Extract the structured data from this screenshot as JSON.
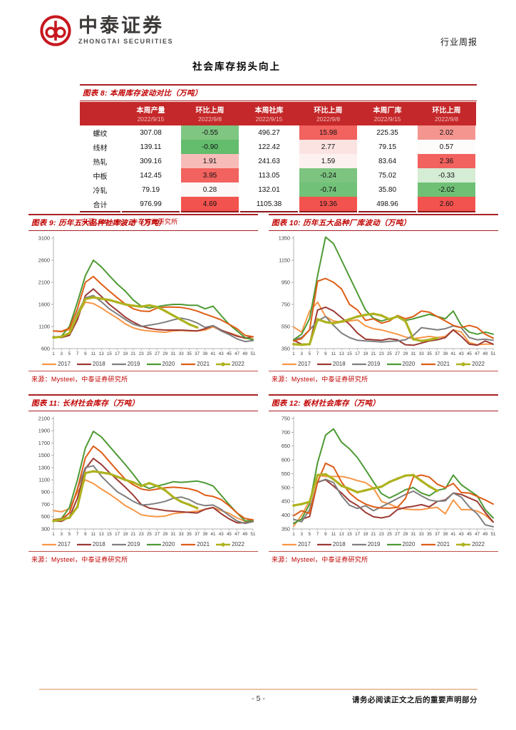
{
  "header": {
    "brand_cn": "中泰证券",
    "brand_en": "ZHONGTAI SECURITIES",
    "doc_type": "行业周报"
  },
  "page_title": "社会库存拐头向上",
  "colors": {
    "brand_red": "#c7171e",
    "accent_red": "#c00000",
    "table_header_bg": "#c5282a",
    "footer_rule": "#e8c4a4"
  },
  "table": {
    "title": "图表 8: 本周库存波动对比（万吨）",
    "columns": [
      {
        "label": "本周产量",
        "date": "2022/9/15"
      },
      {
        "label": "环比上周",
        "date": "2022/9/8"
      },
      {
        "label": "本周社库",
        "date": "2022/9/15"
      },
      {
        "label": "环比上周",
        "date": "2022/9/8"
      },
      {
        "label": "本周厂库",
        "date": "2022/9/15"
      },
      {
        "label": "环比上周",
        "date": "2022/9/8"
      }
    ],
    "rows": [
      {
        "name": "螺纹",
        "cells": [
          {
            "v": "307.08",
            "bg": ""
          },
          {
            "v": "-0.55",
            "bg": "#7fc682"
          },
          {
            "v": "496.27",
            "bg": ""
          },
          {
            "v": "15.98",
            "bg": "#f2625e"
          },
          {
            "v": "225.35",
            "bg": ""
          },
          {
            "v": "2.02",
            "bg": "#f4958f"
          }
        ]
      },
      {
        "name": "线材",
        "cells": [
          {
            "v": "139.11",
            "bg": ""
          },
          {
            "v": "-0.90",
            "bg": "#63bd6c"
          },
          {
            "v": "122.42",
            "bg": ""
          },
          {
            "v": "2.77",
            "bg": "#fbe3e2"
          },
          {
            "v": "79.15",
            "bg": ""
          },
          {
            "v": "0.57",
            "bg": "#fefbfb"
          }
        ]
      },
      {
        "name": "热轧",
        "cells": [
          {
            "v": "309.16",
            "bg": ""
          },
          {
            "v": "1.91",
            "bg": "#f8bcb8"
          },
          {
            "v": "241.63",
            "bg": ""
          },
          {
            "v": "1.59",
            "bg": "#fdf1f0"
          },
          {
            "v": "83.64",
            "bg": ""
          },
          {
            "v": "2.36",
            "bg": "#f2625e"
          }
        ]
      },
      {
        "name": "中板",
        "cells": [
          {
            "v": "142.45",
            "bg": ""
          },
          {
            "v": "3.95",
            "bg": "#f2625e"
          },
          {
            "v": "113.05",
            "bg": ""
          },
          {
            "v": "-0.24",
            "bg": "#7cc480"
          },
          {
            "v": "75.02",
            "bg": ""
          },
          {
            "v": "-0.33",
            "bg": "#d5ecd5"
          }
        ]
      },
      {
        "name": "冷轧",
        "cells": [
          {
            "v": "79.19",
            "bg": ""
          },
          {
            "v": "0.28",
            "bg": "#fdf7f7"
          },
          {
            "v": "132.01",
            "bg": ""
          },
          {
            "v": "-0.74",
            "bg": "#72c178"
          },
          {
            "v": "35.80",
            "bg": ""
          },
          {
            "v": "-2.02",
            "bg": "#6fc075"
          }
        ]
      },
      {
        "name": "合计",
        "cells": [
          {
            "v": "976.99",
            "bg": ""
          },
          {
            "v": "4.69",
            "bg": "#f3534f"
          },
          {
            "v": "1105.38",
            "bg": ""
          },
          {
            "v": "19.36",
            "bg": "#f3534f"
          },
          {
            "v": "498.96",
            "bg": ""
          },
          {
            "v": "2.60",
            "bg": "#f3534f"
          }
        ]
      }
    ],
    "source": "来源：Mysteel，中泰证券研究所"
  },
  "charts": [
    {
      "type": "line",
      "title": "图表 9: 历年五大品种社库波动（万吨）",
      "source": "来源：Mysteel，中泰证券研究所",
      "ylim": [
        600,
        3100
      ],
      "ystep": 500,
      "weeks": [
        1,
        3,
        5,
        7,
        9,
        11,
        13,
        15,
        17,
        19,
        21,
        23,
        25,
        27,
        29,
        31,
        33,
        35,
        37,
        39,
        41,
        43,
        45,
        47,
        49,
        51
      ],
      "series": [
        {
          "name": "2017",
          "color": "#F79646",
          "values": [
            1000,
            980,
            1030,
            1350,
            1650,
            1620,
            1520,
            1400,
            1290,
            1160,
            1070,
            1020,
            1000,
            980,
            970,
            1000,
            1010,
            1000,
            1000,
            1020,
            1090,
            1010,
            960,
            900,
            830,
            820
          ]
        },
        {
          "name": "2018",
          "color": "#9C3A34",
          "values": [
            870,
            850,
            900,
            1250,
            1800,
            1950,
            1780,
            1600,
            1460,
            1310,
            1200,
            1110,
            1060,
            1030,
            1020,
            1020,
            1020,
            1010,
            1000,
            1050,
            1120,
            1020,
            950,
            880,
            840,
            870
          ]
        },
        {
          "name": "2019",
          "color": "#7F7F7F",
          "values": [
            870,
            860,
            960,
            1400,
            1750,
            1800,
            1660,
            1500,
            1380,
            1260,
            1150,
            1100,
            1130,
            1160,
            1200,
            1250,
            1290,
            1250,
            1180,
            1080,
            1120,
            1000,
            920,
            820,
            760,
            780
          ]
        },
        {
          "name": "2020",
          "color": "#4E9A35",
          "values": [
            850,
            880,
            1100,
            1650,
            2250,
            2600,
            2450,
            2250,
            2060,
            1900,
            1700,
            1560,
            1520,
            1550,
            1580,
            1600,
            1600,
            1580,
            1580,
            1500,
            1560,
            1350,
            1150,
            1000,
            850,
            800
          ]
        },
        {
          "name": "2021",
          "color": "#DE5D17",
          "values": [
            1000,
            990,
            1060,
            1500,
            2100,
            2230,
            2060,
            1900,
            1750,
            1610,
            1500,
            1450,
            1440,
            1520,
            1540,
            1540,
            1530,
            1500,
            1450,
            1380,
            1320,
            1250,
            1150,
            1050,
            900,
            870
          ]
        },
        {
          "name": "2022",
          "color": "#AEB21F",
          "marker": true,
          "values": [
            850,
            870,
            950,
            1350,
            1720,
            1760,
            1730,
            1700,
            1650,
            1600,
            1570,
            1550,
            1580,
            1540,
            1450,
            1350,
            1250,
            1150,
            1080
          ]
        }
      ]
    },
    {
      "type": "line",
      "title": "图表 10: 历年五大品种厂库波动（万吨）",
      "source": "来源：Mysteel，中泰证券研究所",
      "ylim": [
        350,
        1350
      ],
      "ystep": 200,
      "weeks": [
        1,
        3,
        5,
        7,
        9,
        11,
        13,
        15,
        17,
        19,
        21,
        23,
        25,
        27,
        29,
        31,
        33,
        35,
        37,
        39,
        41,
        43,
        45,
        47,
        49,
        51
      ],
      "series": [
        {
          "name": "2017",
          "color": "#F79646",
          "values": [
            545,
            500,
            690,
            770,
            640,
            600,
            590,
            600,
            610,
            555,
            530,
            520,
            500,
            480,
            455,
            440,
            450,
            460,
            450,
            460,
            520,
            500,
            405,
            385,
            390,
            390
          ]
        },
        {
          "name": "2018",
          "color": "#9C3A34",
          "values": [
            425,
            390,
            390,
            700,
            725,
            690,
            630,
            570,
            490,
            435,
            430,
            425,
            440,
            430,
            385,
            380,
            400,
            420,
            430,
            450,
            520,
            460,
            390,
            380,
            420,
            390
          ]
        },
        {
          "name": "2019",
          "color": "#7F7F7F",
          "values": [
            430,
            450,
            520,
            600,
            640,
            560,
            490,
            450,
            425,
            420,
            415,
            410,
            415,
            420,
            430,
            470,
            540,
            530,
            520,
            530,
            555,
            540,
            450,
            430,
            435,
            425
          ]
        },
        {
          "name": "2020",
          "color": "#4E9A35",
          "values": [
            430,
            480,
            620,
            1010,
            1360,
            1300,
            1150,
            1000,
            850,
            700,
            625,
            600,
            620,
            640,
            605,
            620,
            640,
            660,
            640,
            620,
            690,
            560,
            500,
            480,
            500,
            480
          ]
        },
        {
          "name": "2021",
          "color": "#DE5D17",
          "values": [
            420,
            440,
            520,
            960,
            985,
            950,
            890,
            750,
            700,
            605,
            620,
            580,
            600,
            650,
            620,
            640,
            690,
            680,
            640,
            600,
            560,
            540,
            560,
            540,
            480,
            445
          ]
        },
        {
          "name": "2022",
          "color": "#AEB21F",
          "marker": true,
          "values": [
            390,
            385,
            390,
            615,
            590,
            580,
            595,
            615,
            640,
            655,
            665,
            650,
            615,
            640,
            600,
            435,
            420,
            430,
            445
          ]
        }
      ]
    },
    {
      "type": "line",
      "title": "图表 11: 长材社会库存（万吨）",
      "source": "来源：Mysteel，中泰证券研究所",
      "ylim": [
        300,
        2100
      ],
      "ystep": 200,
      "weeks": [
        1,
        3,
        5,
        7,
        9,
        11,
        13,
        15,
        17,
        19,
        21,
        23,
        25,
        27,
        29,
        31,
        33,
        35,
        37,
        39,
        41,
        43,
        45,
        47,
        49,
        51
      ],
      "series": [
        {
          "name": "2017",
          "color": "#F79646",
          "values": [
            600,
            580,
            630,
            900,
            1100,
            1040,
            950,
            870,
            780,
            680,
            610,
            530,
            510,
            500,
            510,
            550,
            565,
            575,
            590,
            620,
            650,
            600,
            555,
            480,
            425,
            430
          ]
        },
        {
          "name": "2018",
          "color": "#9C3A34",
          "values": [
            430,
            425,
            490,
            800,
            1280,
            1450,
            1350,
            1220,
            1100,
            980,
            850,
            700,
            640,
            620,
            600,
            590,
            580,
            570,
            560,
            620,
            650,
            550,
            465,
            400,
            400,
            420
          ]
        },
        {
          "name": "2019",
          "color": "#7F7F7F",
          "values": [
            450,
            440,
            560,
            950,
            1300,
            1330,
            1160,
            1030,
            905,
            830,
            750,
            690,
            700,
            720,
            750,
            800,
            820,
            780,
            710,
            680,
            690,
            620,
            520,
            430,
            390,
            420
          ]
        },
        {
          "name": "2020",
          "color": "#4E9A35",
          "values": [
            450,
            470,
            650,
            1100,
            1620,
            1890,
            1800,
            1650,
            1500,
            1350,
            1190,
            1020,
            960,
            1000,
            1030,
            1070,
            1060,
            1070,
            1080,
            1050,
            1000,
            850,
            700,
            560,
            430,
            440
          ]
        },
        {
          "name": "2021",
          "color": "#DE5D17",
          "values": [
            450,
            460,
            560,
            950,
            1460,
            1650,
            1550,
            1400,
            1250,
            1110,
            1020,
            950,
            930,
            950,
            970,
            980,
            970,
            955,
            920,
            850,
            830,
            780,
            680,
            560,
            470,
            450
          ]
        },
        {
          "name": "2022",
          "color": "#AEB21F",
          "marker": true,
          "values": [
            430,
            450,
            485,
            660,
            1210,
            1240,
            1220,
            1200,
            1150,
            1100,
            1060,
            1000,
            1045,
            1000,
            930,
            820,
            745,
            695,
            640
          ]
        }
      ]
    },
    {
      "type": "line",
      "title": "图表 12: 板材社会库存（万吨）",
      "source": "来源：Mysteel，中泰证券研究所",
      "ylim": [
        350,
        750
      ],
      "ystep": 50,
      "weeks": [
        1,
        3,
        5,
        7,
        9,
        11,
        13,
        15,
        17,
        19,
        21,
        23,
        25,
        27,
        29,
        31,
        33,
        35,
        37,
        39,
        41,
        43,
        45,
        47,
        49,
        51
      ],
      "series": [
        {
          "name": "2017",
          "color": "#F79646",
          "values": [
            360,
            400,
            452,
            545,
            540,
            540,
            540,
            534,
            525,
            518,
            498,
            450,
            440,
            428,
            422,
            420,
            420,
            425,
            428,
            405,
            455,
            420,
            420,
            415,
            400,
            375
          ]
        },
        {
          "name": "2018",
          "color": "#9C3A34",
          "values": [
            370,
            385,
            395,
            520,
            528,
            505,
            480,
            452,
            435,
            410,
            394,
            390,
            396,
            420,
            428,
            432,
            438,
            430,
            450,
            455,
            480,
            475,
            462,
            450,
            410,
            375
          ]
        },
        {
          "name": "2019",
          "color": "#7F7F7F",
          "values": [
            385,
            376,
            420,
            518,
            530,
            518,
            470,
            436,
            424,
            434,
            416,
            430,
            445,
            460,
            475,
            487,
            470,
            455,
            450,
            452,
            480,
            465,
            430,
            405,
            365,
            358
          ]
        },
        {
          "name": "2020",
          "color": "#4E9A35",
          "values": [
            370,
            386,
            440,
            590,
            690,
            712,
            664,
            640,
            608,
            565,
            520,
            478,
            462,
            476,
            492,
            500,
            480,
            470,
            490,
            496,
            545,
            510,
            490,
            470,
            420,
            390
          ]
        },
        {
          "name": "2021",
          "color": "#DE5D17",
          "values": [
            398,
            416,
            406,
            520,
            588,
            574,
            520,
            480,
            456,
            440,
            430,
            426,
            425,
            428,
            460,
            538,
            545,
            538,
            512,
            500,
            515,
            482,
            480,
            468,
            455,
            440
          ]
        },
        {
          "name": "2022",
          "color": "#AEB21F",
          "marker": true,
          "values": [
            435,
            440,
            448,
            545,
            548,
            530,
            506,
            495,
            483,
            490,
            497,
            503,
            520,
            532,
            543,
            545,
            524,
            504,
            488
          ]
        }
      ]
    }
  ],
  "footer": {
    "page_number": "- 5 -",
    "disclaimer": "请务必阅读正文之后的重要声明部分"
  }
}
